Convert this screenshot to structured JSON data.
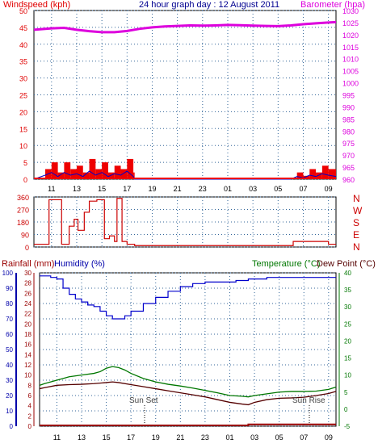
{
  "top": {
    "left_label": "Windspeed (kph)",
    "title": "24 hour graph day : 12 August 2011",
    "right_label": "Barometer (hpa)",
    "left_ticks": [
      0,
      5,
      10,
      15,
      20,
      25,
      30,
      35,
      40,
      45,
      50
    ],
    "right_ticks": [
      980,
      985,
      990,
      995,
      1000,
      1005,
      1010,
      1015,
      1020,
      1025,
      1030
    ],
    "right_low_ticks": [
      960,
      965,
      970,
      975,
      980,
      985,
      990,
      995,
      1000,
      1005,
      1010,
      1015,
      1020,
      1025,
      1030
    ]
  },
  "dir": {
    "left_ticks": [
      0,
      90,
      180,
      270,
      360
    ],
    "compass": [
      "N",
      "W",
      "S",
      "E",
      "N"
    ]
  },
  "bottom": {
    "label_rain": "Rainfall (mm)",
    "label_hum": "Humidity (%)",
    "label_temp": "Temperature (°C)",
    "label_dew": "Dew Point (°C)",
    "rain_ticks": [
      0,
      2,
      4,
      6,
      8,
      10,
      12,
      14,
      16,
      18,
      20,
      22,
      24,
      26,
      28,
      30
    ],
    "hum_ticks": [
      0,
      10,
      20,
      30,
      40,
      50,
      60,
      70,
      80,
      90,
      100
    ],
    "temp_ticks": [
      -5,
      0,
      5,
      10,
      15,
      20,
      25,
      30,
      35,
      40
    ],
    "sunset": "Sun Set",
    "sunrise": "Sun Rise"
  },
  "hours": [
    "11",
    "13",
    "15",
    "17",
    "19",
    "21",
    "23",
    "01",
    "03",
    "05",
    "07",
    "09"
  ],
  "colors": {
    "pressure": "#dd00dd",
    "wind": "#ee0000",
    "gust": "#0000cc",
    "direction": "#cc0000",
    "humidity": "#0000cc",
    "temperature": "#007700",
    "dewpoint": "#550000",
    "rain": "#990000",
    "grid": "#336699"
  },
  "chart_data": [
    {
      "type": "line",
      "title": "24 hour graph day : 12 August 2011",
      "ylabel": "Windspeed (kph)",
      "y2label": "Barometer (hpa)",
      "ylim": [
        0,
        50
      ],
      "y2lim": [
        960,
        1030
      ],
      "x": [
        "11",
        "13",
        "15",
        "17",
        "19",
        "21",
        "23",
        "01",
        "03",
        "05",
        "07",
        "09"
      ],
      "series": [
        {
          "name": "Barometer (hpa)",
          "x": [
            9.6,
            11,
            12,
            13,
            14,
            15,
            16,
            17,
            18,
            19,
            20,
            21,
            22,
            23,
            24,
            25,
            26,
            27,
            28,
            29,
            30,
            31,
            32,
            33,
            33.6
          ],
          "values": [
            1022,
            1022.6,
            1022.8,
            1022,
            1021.4,
            1021,
            1021,
            1021.5,
            1022.4,
            1023,
            1023.4,
            1023.6,
            1023.8,
            1023.7,
            1023.8,
            1024,
            1023.9,
            1023.7,
            1023.6,
            1023.5,
            1023.8,
            1024.3,
            1024.7,
            1025,
            1025.2
          ]
        },
        {
          "name": "Windspeed (kph)",
          "x": [
            9.6,
            10.5,
            11,
            11.5,
            12,
            12.5,
            13,
            13.5,
            14,
            14.5,
            15,
            15.5,
            16,
            16.5,
            17,
            17.5,
            17.6,
            22,
            24,
            30,
            30.5,
            31,
            31.5,
            32,
            32.5,
            33,
            33.6
          ],
          "values": [
            0,
            3,
            5,
            2,
            5,
            3,
            4,
            2,
            6,
            3,
            5,
            2,
            4,
            3,
            6,
            2,
            0,
            0,
            0,
            0,
            2,
            1,
            3,
            2,
            4,
            3,
            2
          ]
        }
      ]
    },
    {
      "type": "line",
      "ylabel": "",
      "ylim": [
        0,
        360
      ],
      "series": [
        {
          "name": "",
          "x": [
            9.6,
            10.6,
            10.8,
            11.6,
            11.8,
            12.4,
            12.8,
            13.1,
            13.6,
            14,
            14.6,
            15.2,
            15.6,
            16,
            16.2,
            16.6,
            17,
            17.4,
            17.6,
            30,
            30.2,
            33,
            33.6
          ],
          "values": [
            20,
            20,
            340,
            340,
            20,
            150,
            200,
            120,
            250,
            330,
            340,
            60,
            80,
            40,
            350,
            40,
            20,
            20,
            10,
            10,
            40,
            20,
            20
          ]
        }
      ]
    },
    {
      "type": "line",
      "ylabel": "Rainfall (mm)",
      "y2label": "Temperature (°C)",
      "ylim": [
        0,
        30
      ],
      "y2lim": [
        -5,
        40
      ],
      "x": [
        "11",
        "13",
        "15",
        "17",
        "19",
        "21",
        "23",
        "01",
        "03",
        "05",
        "07",
        "09"
      ],
      "series": [
        {
          "name": "Humidity (%)",
          "x": [
            9.6,
            10.5,
            11,
            11.5,
            12,
            12.5,
            13,
            13.5,
            14,
            14.5,
            15,
            15.5,
            16,
            16.5,
            17,
            18,
            19,
            20,
            21,
            22,
            22.5,
            23,
            24,
            25,
            25.5,
            26,
            26.5,
            27,
            28,
            29,
            30,
            31,
            32,
            33,
            33.6
          ],
          "values": [
            98,
            97,
            96,
            90,
            86,
            83,
            81,
            79,
            78,
            75,
            72,
            70,
            70,
            72,
            75,
            80,
            84,
            88,
            91,
            93,
            93,
            94,
            94,
            94,
            95,
            95,
            96,
            96,
            97,
            97,
            97,
            97,
            97,
            97,
            97
          ]
        },
        {
          "name": "Temperature (°C)",
          "x": [
            9.6,
            10,
            11,
            12,
            13,
            14,
            14.5,
            15,
            15.5,
            16,
            16.5,
            17,
            18,
            19,
            20,
            21,
            22,
            23,
            24,
            25,
            26,
            26.5,
            27,
            28,
            29,
            30,
            31,
            32,
            33,
            33.6
          ],
          "values": [
            7,
            7.5,
            8.5,
            9.5,
            10,
            10.5,
            11,
            12,
            12.5,
            12.2,
            11.5,
            10.5,
            9,
            8,
            7.3,
            6.8,
            6.2,
            5.5,
            4.8,
            4,
            3.8,
            3.6,
            4,
            4.5,
            5,
            5.2,
            5.2,
            5.3,
            5.8,
            6.5
          ]
        },
        {
          "name": "Dew Point (°C)",
          "x": [
            9.6,
            10,
            11,
            12,
            13,
            14,
            15,
            15.5,
            16,
            17,
            18,
            19,
            20,
            21,
            22,
            23,
            24,
            25,
            26,
            26.5,
            27,
            28,
            29,
            30,
            31,
            32,
            33,
            33.6
          ],
          "values": [
            6,
            6.3,
            7,
            7.2,
            7.3,
            7.5,
            7.8,
            8,
            7.8,
            7.2,
            6.6,
            6,
            5.4,
            4.8,
            4.2,
            3.6,
            2.8,
            2,
            1.5,
            1.3,
            2,
            2.8,
            3.2,
            3.3,
            3.5,
            4,
            4.6,
            5.2
          ]
        },
        {
          "name": "Rainfall (mm)",
          "x": [
            9.6,
            26.5,
            26.5,
            33.6
          ],
          "values": [
            0,
            0,
            0.2,
            0.2
          ]
        }
      ]
    }
  ]
}
